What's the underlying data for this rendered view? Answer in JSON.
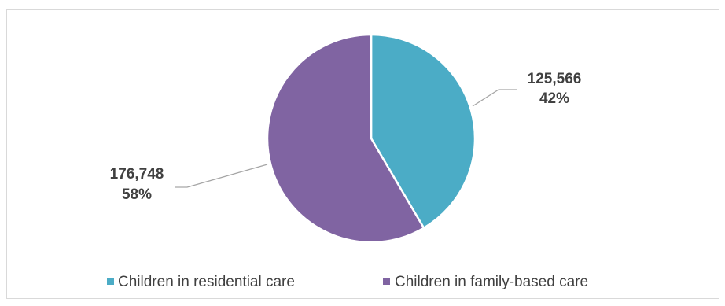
{
  "chart_data": {
    "type": "pie",
    "title": "",
    "categories": [
      "Children in residential care",
      "Children in family-based care"
    ],
    "values": [
      125566,
      176748
    ],
    "labels": [
      {
        "value_text": "125,566",
        "percent_text": "42%"
      },
      {
        "value_text": "176,748",
        "percent_text": "58%"
      }
    ],
    "colors": [
      "#4bacc6",
      "#8064a2"
    ],
    "legend_position": "bottom",
    "start_angle_deg": 0,
    "direction": "clockwise"
  }
}
